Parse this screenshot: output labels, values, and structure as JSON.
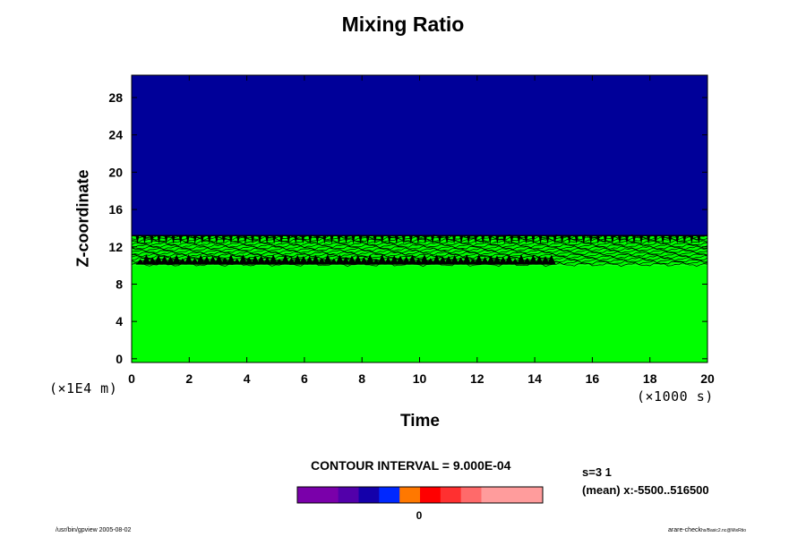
{
  "chart_data": {
    "type": "heatmap",
    "title": "Mixing Ratio",
    "xlabel": "Time",
    "ylabel": "Z-coordinate",
    "x_unit_label": "(×1000 s)",
    "y_unit_label": "(×1E4 m)",
    "xlim": [
      0,
      20
    ],
    "ylim": [
      -0.4,
      30.4
    ],
    "x_ticks": [
      0,
      2,
      4,
      6,
      8,
      10,
      12,
      14,
      16,
      18,
      20
    ],
    "y_ticks": [
      0,
      4,
      8,
      12,
      16,
      20,
      24,
      28
    ],
    "regions": [
      {
        "name": "lower",
        "y_range": [
          -0.4,
          10
        ],
        "color": "#00ff00"
      },
      {
        "name": "contour band",
        "y_range": [
          10,
          13.2
        ],
        "color": "#00ff00"
      },
      {
        "name": "upper",
        "y_range": [
          13.2,
          30.4
        ],
        "color": "#000099"
      }
    ],
    "contour_interval_label": "CONTOUR INTERVAL = 9.000E-04",
    "colorbar": {
      "tick_label": "0",
      "segments": [
        "#7a00aa",
        "#7a00aa",
        "#5200aa",
        "#1400aa",
        "#0028ff",
        "#ff7800",
        "#ff0000",
        "#ff3030",
        "#ff6a6a",
        "#ff9c9c",
        "#ff9c9c",
        "#ff9c9c"
      ]
    }
  },
  "stats": {
    "line1": "s=3 1",
    "line2": "(mean) x:-5500..516500"
  },
  "footer": {
    "left": "/usr/bin/gpview 2005-08-02",
    "right_main": "arare-check",
    "right_sub": "hs/Basic2.nc@MixRtio"
  }
}
